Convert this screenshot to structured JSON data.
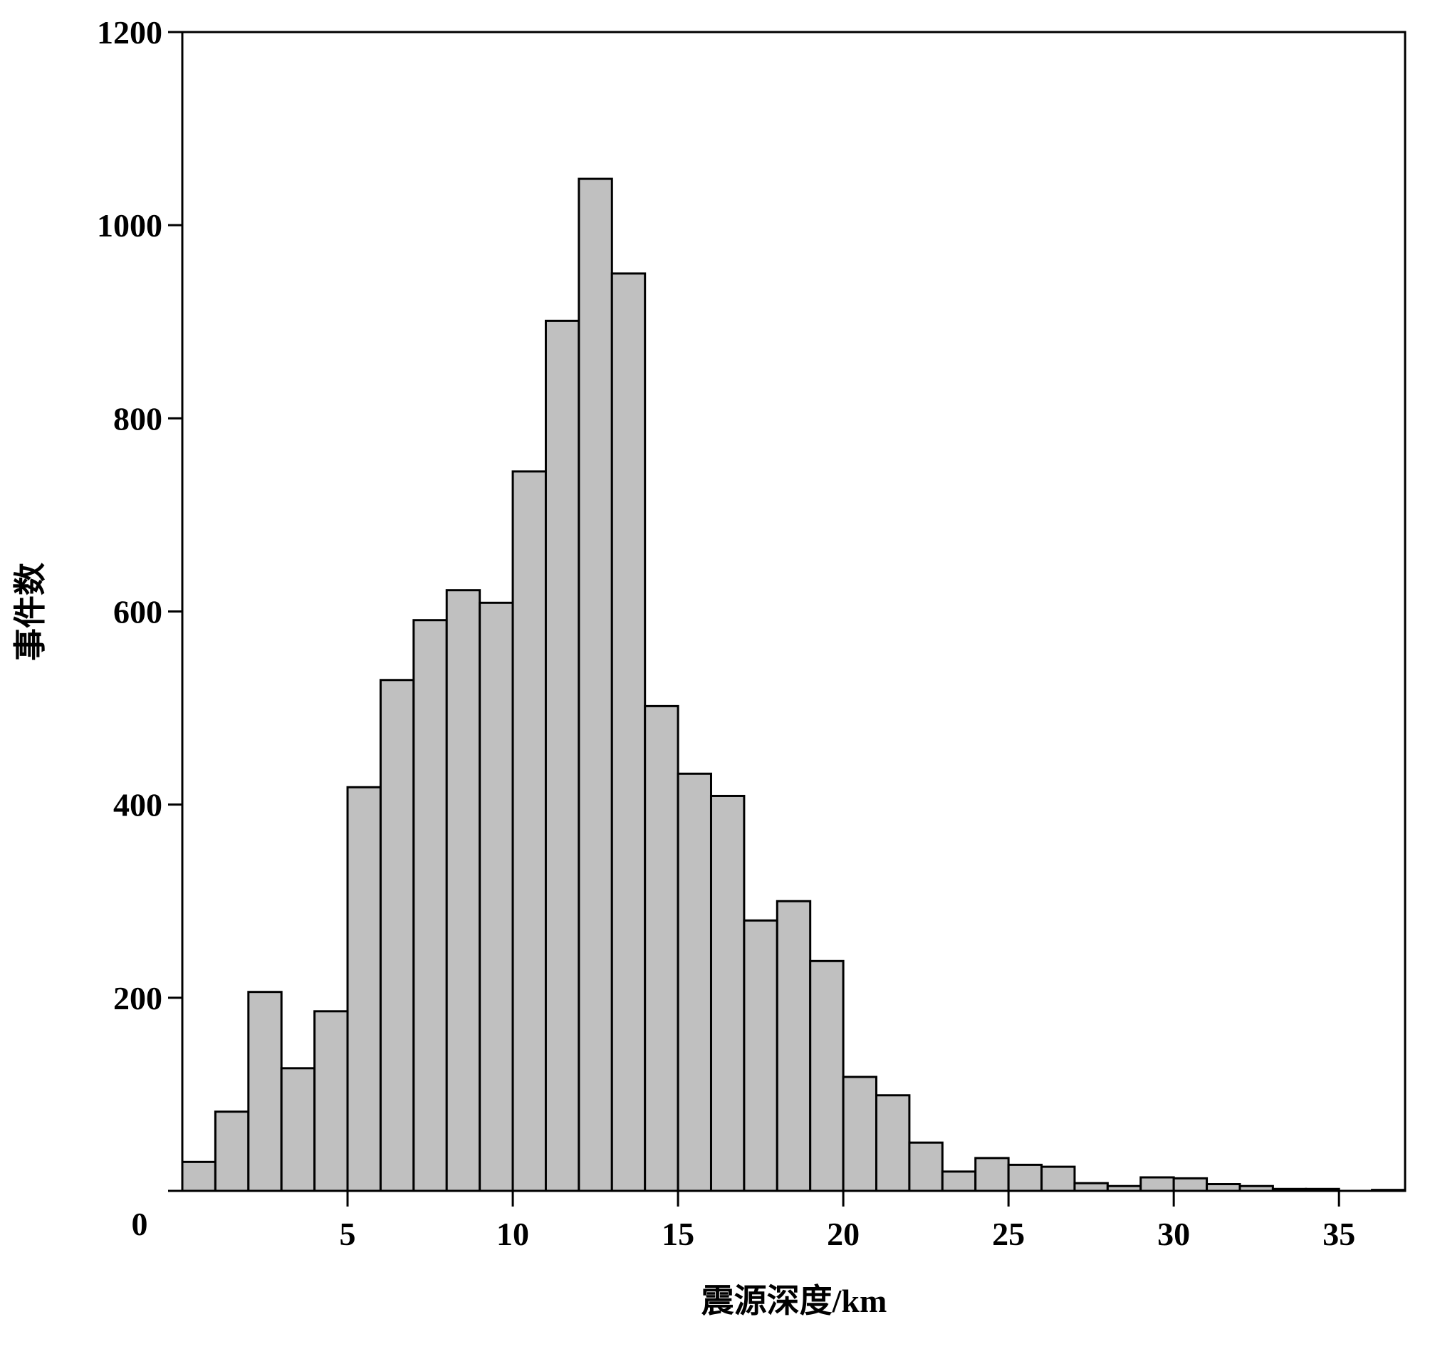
{
  "chart_data": {
    "type": "histogram",
    "xlabel": "震源深度/km",
    "ylabel": "事件数",
    "bins": [
      0,
      1,
      2,
      3,
      4,
      5,
      6,
      7,
      8,
      9,
      10,
      11,
      12,
      13,
      14,
      15,
      16,
      17,
      18,
      19,
      20,
      21,
      22,
      23,
      24,
      25,
      26,
      27,
      28,
      29,
      30,
      31,
      32,
      33,
      34,
      35,
      36,
      37
    ],
    "values": [
      30,
      82,
      206,
      127,
      186,
      418,
      529,
      591,
      622,
      609,
      745,
      901,
      1048,
      950,
      502,
      432,
      409,
      280,
      300,
      238,
      118,
      99,
      50,
      20,
      34,
      27,
      25,
      8,
      5,
      14,
      13,
      7,
      5,
      2,
      2,
      0,
      1
    ],
    "color": "#c0c0c0",
    "xlim": [
      0,
      37
    ],
    "xticks": [
      5,
      10,
      15,
      20,
      25,
      30,
      35
    ],
    "ylim": [
      0,
      1200
    ],
    "yticks": [
      0,
      200,
      400,
      600,
      800,
      1000,
      1200
    ],
    "grid": false
  }
}
